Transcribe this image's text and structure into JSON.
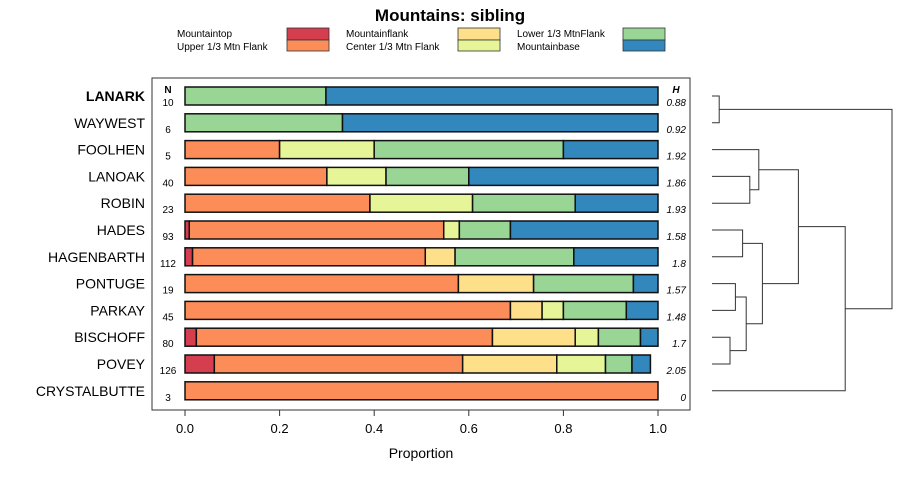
{
  "chart_data": {
    "type": "bar",
    "stacked": true,
    "orientation": "horizontal",
    "title": "Mountains: sibling",
    "xlabel": "Proportion",
    "xlim": [
      0,
      1
    ],
    "xticks": [
      "0.0",
      "0.2",
      "0.4",
      "0.6",
      "0.8",
      "1.0"
    ],
    "n_header": "N",
    "h_header": "H",
    "legend": [
      {
        "name": "Mountaintop",
        "color": "#d53e4f"
      },
      {
        "name": "Upper 1/3 Mtn Flank",
        "color": "#fc8d59"
      },
      {
        "name": "Mountainflank",
        "color": "#fee08b"
      },
      {
        "name": "Center 1/3 Mtn Flank",
        "color": "#e6f598"
      },
      {
        "name": "Lower 1/3 MtnFlank",
        "color": "#99d594"
      },
      {
        "name": "Mountainbase",
        "color": "#3288bd"
      }
    ],
    "rows": [
      {
        "label": "LANARK",
        "bold": true,
        "n": "10",
        "h": "0.88",
        "values": [
          0,
          0,
          0,
          0,
          0.298,
          0.702
        ]
      },
      {
        "label": "WAYWEST",
        "n": "6",
        "h": "0.92",
        "values": [
          0,
          0,
          0,
          0,
          0.333,
          0.667
        ]
      },
      {
        "label": "FOOLHEN",
        "n": "5",
        "h": "1.92",
        "values": [
          0,
          0.2,
          0,
          0.2,
          0.4,
          0.2
        ]
      },
      {
        "label": "LANOAK",
        "n": "40",
        "h": "1.86",
        "values": [
          0,
          0.3,
          0,
          0.125,
          0.175,
          0.4
        ]
      },
      {
        "label": "ROBIN",
        "n": "23",
        "h": "1.93",
        "values": [
          0,
          0.391,
          0,
          0.217,
          0.217,
          0.175
        ]
      },
      {
        "label": "HADES",
        "n": "93",
        "h": "1.58",
        "values": [
          0.009,
          0.538,
          0,
          0.033,
          0.108,
          0.312
        ]
      },
      {
        "label": "HAGENBARTH",
        "n": "112",
        "h": "1.8",
        "values": [
          0.016,
          0.492,
          0.063,
          0,
          0.251,
          0.178
        ]
      },
      {
        "label": "PONTUGE",
        "n": "19",
        "h": "1.57",
        "values": [
          0,
          0.578,
          0.159,
          0,
          0.211,
          0.052
        ]
      },
      {
        "label": "PARKAY",
        "n": "45",
        "h": "1.48",
        "values": [
          0,
          0.688,
          0.067,
          0.045,
          0.133,
          0.067
        ]
      },
      {
        "label": "BISCHOFF",
        "n": "80",
        "h": "1.7",
        "values": [
          0.024,
          0.626,
          0.175,
          0.049,
          0.089,
          0.037
        ]
      },
      {
        "label": "POVEY",
        "n": "126",
        "h": "2.05",
        "values": [
          0.062,
          0.525,
          0.199,
          0.103,
          0.056,
          0.039
        ]
      },
      {
        "label": "CRYSTALBUTTE",
        "n": "3",
        "h": "0",
        "values": [
          0,
          1,
          0,
          0,
          0,
          0
        ]
      }
    ],
    "dendrogram": {
      "merges": [
        {
          "a": 0,
          "b": 1,
          "height": 0.04
        },
        {
          "a": 3,
          "b": 4,
          "height": 0.21
        },
        {
          "a": 2,
          "b": "m1",
          "height": 0.26
        },
        {
          "a": 5,
          "b": 6,
          "height": 0.17
        },
        {
          "a": 7,
          "b": 8,
          "height": 0.13
        },
        {
          "a": 9,
          "b": 10,
          "height": 0.1
        },
        {
          "a": "m4",
          "b": "m5",
          "height": 0.19
        },
        {
          "a": "m3",
          "b": "m6",
          "height": 0.28
        },
        {
          "a": "m2",
          "b": "m7",
          "height": 0.48
        },
        {
          "a": "m8",
          "b": 11,
          "height": 0.74
        },
        {
          "a": "m0",
          "b": "m9",
          "height": 1.0
        }
      ]
    }
  }
}
